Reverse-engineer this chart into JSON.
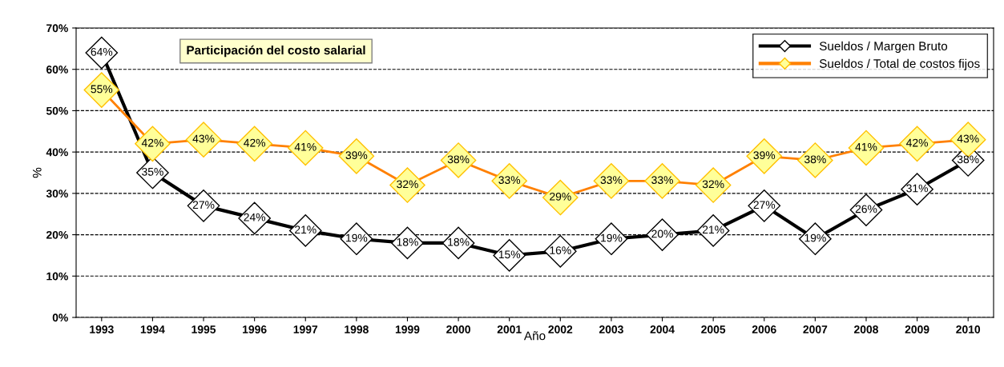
{
  "chart_data": {
    "type": "line",
    "title": "Participación del costo salarial",
    "xlabel": "Año",
    "ylabel": "%",
    "categories": [
      "1993",
      "1994",
      "1995",
      "1996",
      "1997",
      "1998",
      "1999",
      "2000",
      "2001",
      "2002",
      "2003",
      "2004",
      "2005",
      "2006",
      "2007",
      "2008",
      "2009",
      "2010"
    ],
    "series": [
      {
        "name": "Sueldos / Margen Bruto",
        "color": "#000000",
        "values": [
          64,
          35,
          27,
          24,
          21,
          19,
          18,
          18,
          15,
          16,
          19,
          20,
          21,
          27,
          19,
          26,
          31,
          38
        ],
        "value_labels": [
          "64%",
          "35%",
          "27%",
          "24%",
          "21%",
          "19%",
          "18%",
          "18%",
          "15%",
          "16%",
          "19%",
          "20%",
          "21%",
          "27%",
          "19%",
          "26%",
          "31%",
          "38%"
        ]
      },
      {
        "name": "Sueldos / Total de costos fijos",
        "color": "#ff8000",
        "values": [
          55,
          42,
          43,
          42,
          41,
          39,
          32,
          38,
          33,
          29,
          33,
          33,
          32,
          39,
          38,
          41,
          42,
          43
        ],
        "value_labels": [
          "55%",
          "42%",
          "43%",
          "42%",
          "41%",
          "39%",
          "32%",
          "38%",
          "33%",
          "29%",
          "33%",
          "33%",
          "32%",
          "39%",
          "38%",
          "41%",
          "42%",
          "43%"
        ]
      }
    ],
    "ylim": [
      0,
      70
    ],
    "yticks": [
      {
        "value": 0,
        "label": "0%"
      },
      {
        "value": 10,
        "label": "10%"
      },
      {
        "value": 20,
        "label": "20%"
      },
      {
        "value": 30,
        "label": "30%"
      },
      {
        "value": 40,
        "label": "40%"
      },
      {
        "value": 50,
        "label": "50%"
      },
      {
        "value": 60,
        "label": "60%"
      },
      {
        "value": 70,
        "label": "70%"
      }
    ],
    "grid": "y",
    "legend": "top right",
    "marker": "diamond",
    "line_style": "solid"
  }
}
